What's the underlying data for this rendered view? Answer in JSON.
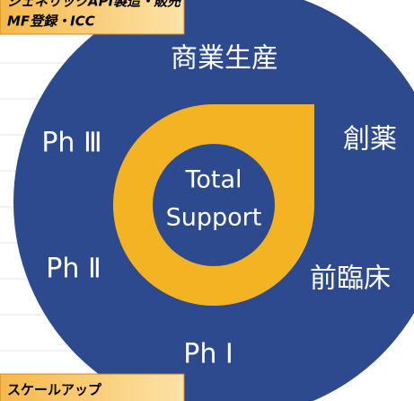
{
  "header": {
    "lines": [
      "ジェネリックAPI製造・販売",
      "MF登録・ICC"
    ]
  },
  "footer": {
    "label": "スケールアップ"
  },
  "center": {
    "lines": [
      "Total",
      "Support"
    ]
  },
  "stages": {
    "top": "商業生産",
    "right_upper": "創薬",
    "right_lower": "前臨床",
    "bottom": "Ph Ⅰ",
    "left_lower": "Ph Ⅱ",
    "left_upper": "Ph Ⅲ"
  }
}
